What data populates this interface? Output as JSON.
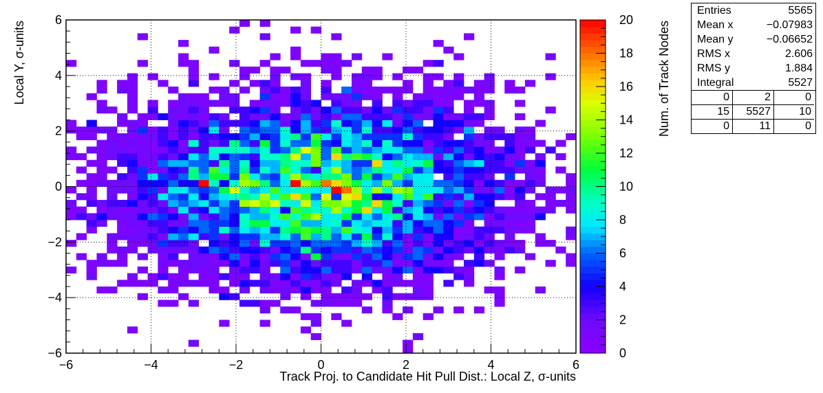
{
  "chart_data": {
    "type": "heatmap",
    "title": "",
    "xlabel": "Track Proj. to Candidate Hit Pull Dist.: Local Z, σ-units",
    "ylabel": "Local Y, σ-units",
    "zlabel": "Num. of Track Nodes",
    "xlim": [
      -6,
      6
    ],
    "ylim": [
      -6,
      6
    ],
    "zlim": [
      0,
      20
    ],
    "x_ticks": [
      "−6",
      "−4",
      "−2",
      "0",
      "2",
      "4",
      "6"
    ],
    "y_ticks": [
      "−6",
      "−4",
      "−2",
      "0",
      "2",
      "4",
      "6"
    ],
    "z_ticks": [
      "0",
      "2",
      "4",
      "6",
      "8",
      "10",
      "12",
      "14",
      "16",
      "18",
      "20"
    ],
    "nbins_x": 50,
    "nbins_y": 50,
    "grid": true,
    "peaks": [
      {
        "x": -2.8,
        "y": 0.1,
        "count": 20
      },
      {
        "x": -0.6,
        "y": 0.1,
        "count": 20
      },
      {
        "x": 0.3,
        "y": 0.1,
        "count": 16
      },
      {
        "x": -1.0,
        "y": -0.5,
        "count": 15
      },
      {
        "x": -1.7,
        "y": -0.7,
        "count": 14
      }
    ],
    "distribution": {
      "mean_x": -0.07983,
      "mean_y": -0.06652,
      "rms_x": 2.606,
      "rms_y": 1.884,
      "entries": 5565
    }
  },
  "stats": {
    "rows": [
      {
        "label": "Entries",
        "value": "5565"
      },
      {
        "label": "Mean x",
        "value": "−0.07983"
      },
      {
        "label": "Mean y",
        "value": "−0.06652"
      },
      {
        "label": "RMS x",
        "value": "2.606"
      },
      {
        "label": "RMS y",
        "value": "1.884"
      },
      {
        "label": "Integral",
        "value": "5527"
      }
    ],
    "grid": [
      "0",
      "2",
      "0",
      "15",
      "5527",
      "10",
      "0",
      "11",
      "0"
    ]
  }
}
